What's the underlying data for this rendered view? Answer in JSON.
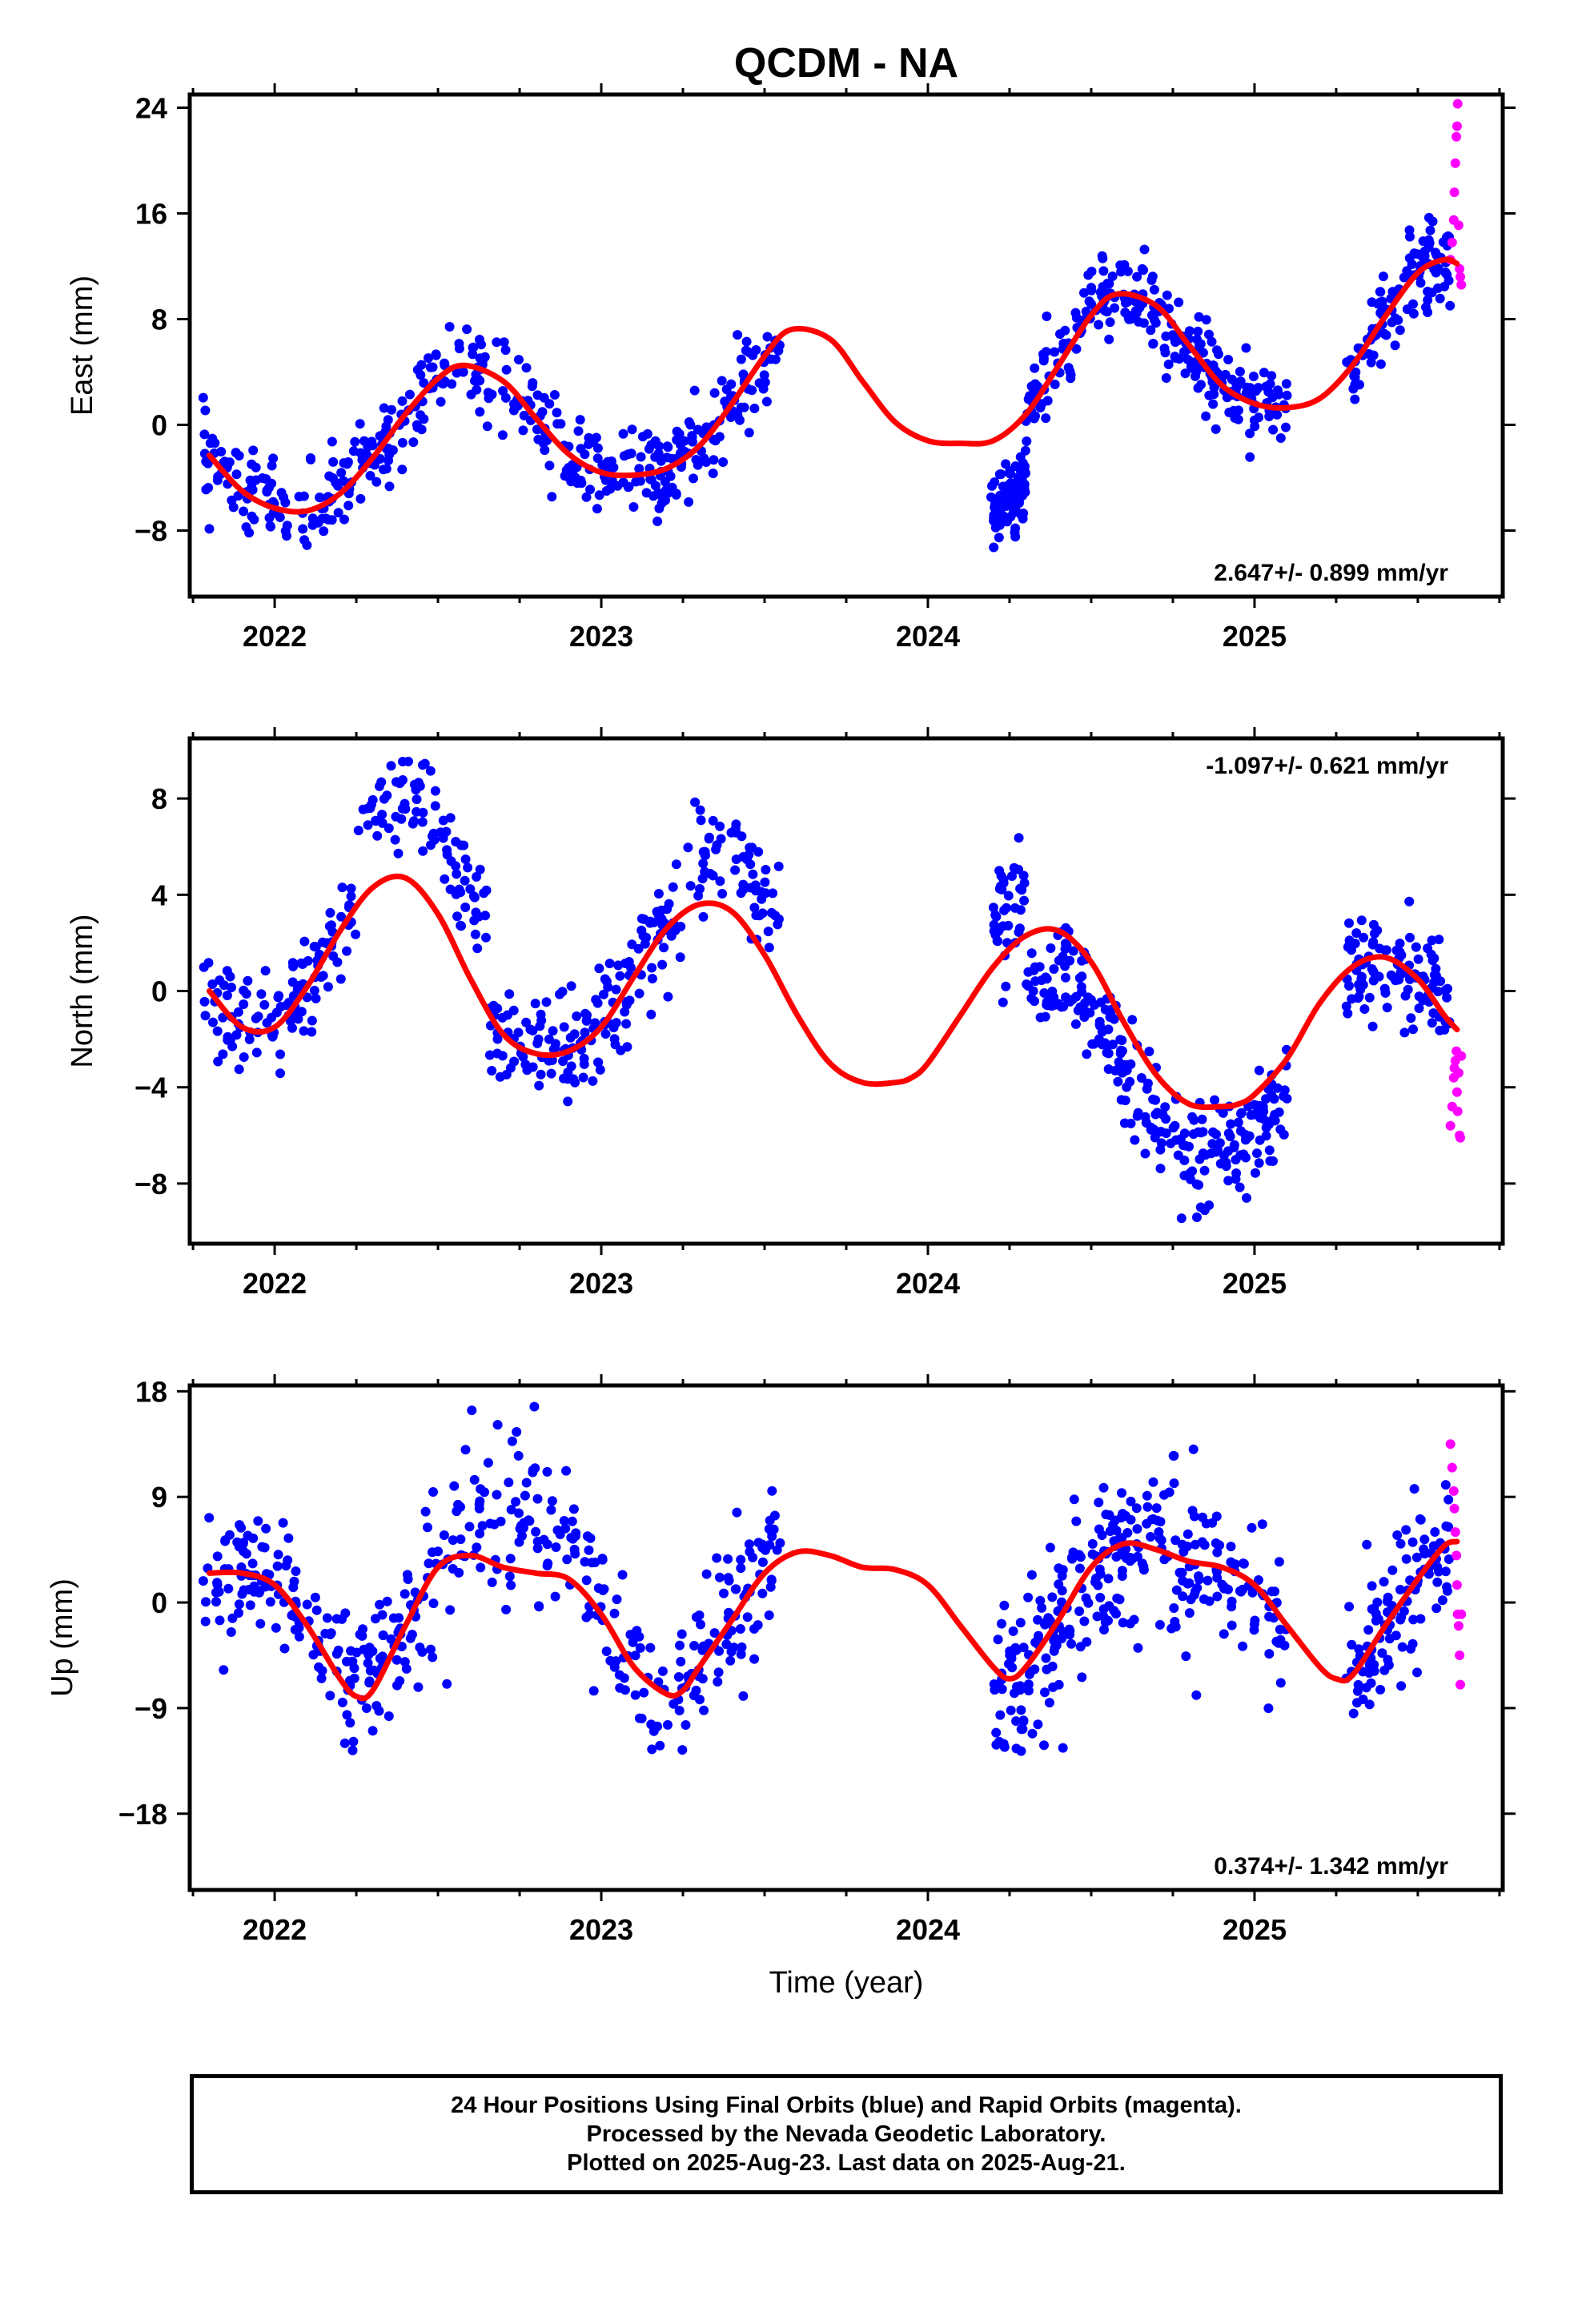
{
  "figure": {
    "title": "QCDM - NA",
    "xlabel": "Time (year)",
    "footer": [
      "24 Hour Positions Using Final Orbits (blue) and Rapid Orbits (magenta).",
      "Processed by the Nevada Geodetic Laboratory.",
      "Plotted on 2025-Aug-23. Last data on 2025-Aug-21."
    ]
  },
  "colors": {
    "final_orbits": "#0000ff",
    "rapid_orbits": "#ff00ff",
    "model_fit": "#ff0000",
    "frame": "#000000",
    "background": "#ffffff"
  },
  "chart_data": [
    {
      "type": "scatter",
      "panel": "east",
      "ylabel": "East (mm)",
      "xlim": [
        2021.74,
        2025.76
      ],
      "ylim": [
        -13,
        25
      ],
      "xticks": [
        2022,
        2023,
        2024,
        2025
      ],
      "xtick_labels": [
        "2022",
        "2023",
        "2024",
        "2025"
      ],
      "yticks": [
        -8,
        0,
        8,
        16,
        24
      ],
      "ytick_labels": [
        "−8",
        "0",
        "8",
        "16",
        "24"
      ],
      "rate_label": "2.647+/- 0.899 mm/yr",
      "rate_position": "bottom-right",
      "fit": {
        "x": [
          2021.8,
          2021.9,
          2022.0,
          2022.1,
          2022.2,
          2022.3,
          2022.4,
          2022.5,
          2022.58,
          2022.7,
          2022.8,
          2022.9,
          2023.0,
          2023.1,
          2023.2,
          2023.3,
          2023.4,
          2023.5,
          2023.58,
          2023.7,
          2023.8,
          2023.9,
          2024.0,
          2024.1,
          2024.2,
          2024.3,
          2024.4,
          2024.5,
          2024.58,
          2024.7,
          2024.8,
          2024.9,
          2025.0,
          2025.1,
          2025.2,
          2025.3,
          2025.4,
          2025.5,
          2025.58,
          2025.62
        ],
        "y": [
          -2.3,
          -5.0,
          -6.3,
          -6.5,
          -5.2,
          -2.5,
          0.8,
          3.5,
          4.5,
          3.3,
          0.5,
          -2.2,
          -3.6,
          -3.8,
          -3.3,
          -1.6,
          1.6,
          5.2,
          7.2,
          6.5,
          3.3,
          0.2,
          -1.2,
          -1.4,
          -1.2,
          0.8,
          4.5,
          8.3,
          9.9,
          9.0,
          6.0,
          3.0,
          1.6,
          1.3,
          2.0,
          4.5,
          8.2,
          11.5,
          12.5,
          12.2
        ]
      },
      "final_orbits_data": {
        "segments": [
          {
            "start": 2021.78,
            "end": 2023.55,
            "count": 430,
            "noise": 1.6
          },
          {
            "start": 2024.2,
            "end": 2025.1,
            "count": 300,
            "noise": 1.6
          },
          {
            "start": 2025.28,
            "end": 2025.6,
            "count": 110,
            "noise": 1.6
          }
        ],
        "offset_segment": {
          "start": 2024.19,
          "end": 2024.3,
          "offset": -5.2,
          "count": 60
        }
      },
      "rapid_orbits_data": {
        "x": [
          2025.6,
          2025.605,
          2025.61,
          2025.612,
          2025.615,
          2025.618,
          2025.62,
          2025.622,
          2025.625,
          2025.628,
          2025.63,
          2025.633
        ],
        "y": [
          12.5,
          13.8,
          15.5,
          17.6,
          19.8,
          21.8,
          22.6,
          24.3,
          15.1,
          11.8,
          11.2,
          10.6
        ]
      }
    },
    {
      "type": "scatter",
      "panel": "north",
      "ylabel": "North (mm)",
      "xlim": [
        2021.74,
        2025.76
      ],
      "ylim": [
        -10.5,
        10.5
      ],
      "xticks": [
        2022,
        2023,
        2024,
        2025
      ],
      "xtick_labels": [
        "2022",
        "2023",
        "2024",
        "2025"
      ],
      "yticks": [
        -8,
        -4,
        0,
        4,
        8
      ],
      "ytick_labels": [
        "−8",
        "−4",
        "0",
        "4",
        "8"
      ],
      "rate_label": "-1.097+/- 0.621 mm/yr",
      "rate_position": "top-right",
      "fit": {
        "x": [
          2021.8,
          2021.9,
          2022.0,
          2022.1,
          2022.2,
          2022.3,
          2022.4,
          2022.5,
          2022.6,
          2022.7,
          2022.8,
          2022.9,
          2023.0,
          2023.1,
          2023.2,
          2023.3,
          2023.4,
          2023.5,
          2023.6,
          2023.7,
          2023.8,
          2023.9,
          2023.95,
          2024.0,
          2024.1,
          2024.2,
          2024.3,
          2024.4,
          2024.5,
          2024.6,
          2024.7,
          2024.8,
          2024.9,
          2024.95,
          2025.0,
          2025.1,
          2025.2,
          2025.3,
          2025.4,
          2025.5,
          2025.58,
          2025.62
        ],
        "y": [
          0.0,
          -1.5,
          -1.5,
          0.2,
          2.5,
          4.3,
          4.7,
          3.2,
          0.5,
          -1.8,
          -2.6,
          -2.5,
          -1.5,
          0.6,
          2.6,
          3.6,
          3.3,
          1.5,
          -1.0,
          -3.0,
          -3.8,
          -3.8,
          -3.6,
          -3.0,
          -1.0,
          1.0,
          2.3,
          2.5,
          1.2,
          -1.3,
          -3.5,
          -4.7,
          -4.8,
          -4.7,
          -4.3,
          -2.8,
          -0.5,
          1.0,
          1.4,
          0.5,
          -1.0,
          -1.6
        ]
      },
      "final_orbits_data": {
        "segments": [
          {
            "start": 2021.78,
            "end": 2023.55,
            "count": 430,
            "noise": 1.1
          },
          {
            "start": 2024.2,
            "end": 2025.1,
            "count": 300,
            "noise": 1.1
          },
          {
            "start": 2025.28,
            "end": 2025.6,
            "count": 110,
            "noise": 1.1
          }
        ],
        "trend_offset": [
          {
            "start": 2022.25,
            "end": 2022.65,
            "offset": 3.2
          },
          {
            "start": 2023.25,
            "end": 2023.55,
            "offset": 2.4
          },
          {
            "start": 2024.2,
            "end": 2024.3,
            "offset": 1.8
          },
          {
            "start": 2024.3,
            "end": 2025.1,
            "offset": -1.8
          }
        ]
      },
      "rapid_orbits_data": {
        "x": [
          2025.6,
          2025.605,
          2025.61,
          2025.612,
          2025.615,
          2025.618,
          2025.62,
          2025.622,
          2025.625,
          2025.628,
          2025.63,
          2025.633
        ],
        "y": [
          -5.6,
          -4.8,
          -3.6,
          -3.2,
          -2.9,
          -2.5,
          -4.2,
          -5.0,
          -3.4,
          -6.0,
          -6.1,
          -2.7
        ]
      }
    },
    {
      "type": "scatter",
      "panel": "up",
      "ylabel": "Up (mm)",
      "xlim": [
        2021.74,
        2025.76
      ],
      "ylim": [
        -24.5,
        18.5
      ],
      "xticks": [
        2022,
        2023,
        2024,
        2025
      ],
      "xtick_labels": [
        "2022",
        "2023",
        "2024",
        "2025"
      ],
      "yticks": [
        -18,
        -9,
        0,
        9,
        18
      ],
      "ytick_labels": [
        "−18",
        "−9",
        "0",
        "9",
        "18"
      ],
      "rate_label": "0.374+/- 1.342 mm/yr",
      "rate_position": "bottom-right",
      "fit": {
        "x": [
          2021.8,
          2021.9,
          2022.0,
          2022.1,
          2022.2,
          2022.25,
          2022.3,
          2022.4,
          2022.5,
          2022.6,
          2022.7,
          2022.8,
          2022.9,
          2023.0,
          2023.1,
          2023.2,
          2023.25,
          2023.3,
          2023.4,
          2023.5,
          2023.6,
          2023.7,
          2023.8,
          2023.9,
          2024.0,
          2024.1,
          2024.2,
          2024.25,
          2024.3,
          2024.4,
          2024.5,
          2024.6,
          2024.7,
          2024.8,
          2024.9,
          2025.0,
          2025.1,
          2025.2,
          2025.25,
          2025.3,
          2025.4,
          2025.5,
          2025.58,
          2025.62
        ],
        "y": [
          2.5,
          2.5,
          1.5,
          -2.0,
          -6.5,
          -8.0,
          -7.5,
          -2.0,
          3.0,
          4.0,
          3.0,
          2.5,
          2.0,
          -1.0,
          -5.5,
          -7.8,
          -7.5,
          -5.5,
          -1.5,
          2.5,
          4.3,
          4.0,
          3.0,
          2.8,
          1.5,
          -2.0,
          -5.5,
          -6.5,
          -5.5,
          -1.5,
          3.0,
          5.0,
          4.5,
          3.5,
          3.0,
          1.5,
          -2.0,
          -5.5,
          -6.5,
          -6.2,
          -2.0,
          2.0,
          4.8,
          5.2
        ]
      },
      "final_orbits_data": {
        "segments": [
          {
            "start": 2021.78,
            "end": 2023.55,
            "count": 430,
            "noise": 3.4
          },
          {
            "start": 2024.2,
            "end": 2025.1,
            "count": 300,
            "noise": 3.4
          },
          {
            "start": 2025.28,
            "end": 2025.6,
            "count": 110,
            "noise": 3.4
          }
        ],
        "trend_offset": [
          {
            "start": 2022.55,
            "end": 2022.95,
            "offset": 3.5
          }
        ]
      },
      "rapid_orbits_data": {
        "x": [
          2025.6,
          2025.605,
          2025.61,
          2025.612,
          2025.615,
          2025.618,
          2025.62,
          2025.622,
          2025.625,
          2025.628,
          2025.63,
          2025.633
        ],
        "y": [
          13.5,
          11.5,
          9.5,
          8.0,
          6.0,
          4.0,
          1.5,
          -1.0,
          -2.0,
          -4.5,
          -7.0,
          -1.0
        ]
      }
    }
  ]
}
